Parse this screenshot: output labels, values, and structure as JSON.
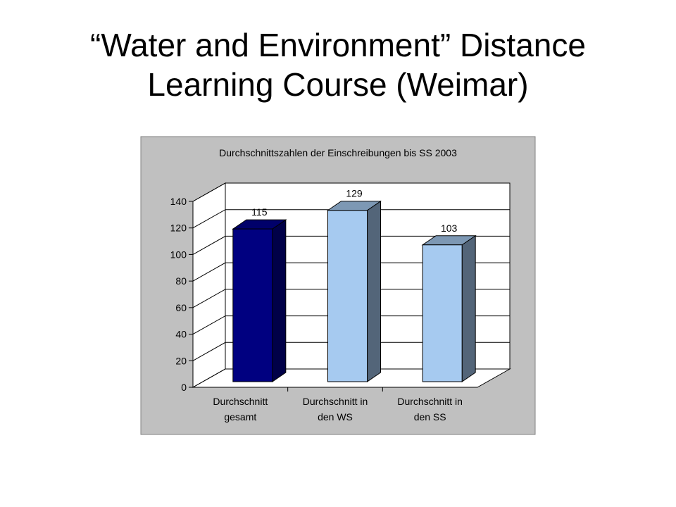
{
  "slide": {
    "title_line1": "“Water and Environment” Distance",
    "title_line2": "Learning Course (Weimar)"
  },
  "chart_data": {
    "type": "bar",
    "title": "Durchschnittszahlen der Einschreibungen bis SS 2003",
    "categories": [
      [
        "Durchschnitt",
        "gesamt"
      ],
      [
        "Durchschnitt in",
        "den WS"
      ],
      [
        "Durchschnitt in",
        "den SS"
      ]
    ],
    "values": [
      115,
      129,
      103
    ],
    "data_labels": [
      "115",
      "129",
      "103"
    ],
    "ylim": [
      0,
      140
    ],
    "yticks": [
      0,
      20,
      40,
      60,
      80,
      100,
      120,
      140
    ],
    "grid": true,
    "three_d": true,
    "xlabel": "",
    "ylabel": "",
    "bar_colors": [
      {
        "front": "#000080",
        "side": "#000048",
        "top": "#00006a"
      },
      {
        "front": "#a6caf0",
        "side": "#536579",
        "top": "#7d98b4"
      },
      {
        "front": "#a6caf0",
        "side": "#536579",
        "top": "#7d98b4"
      }
    ],
    "plot_background": "#c0c0c0",
    "wall_background": "#ffffff"
  }
}
